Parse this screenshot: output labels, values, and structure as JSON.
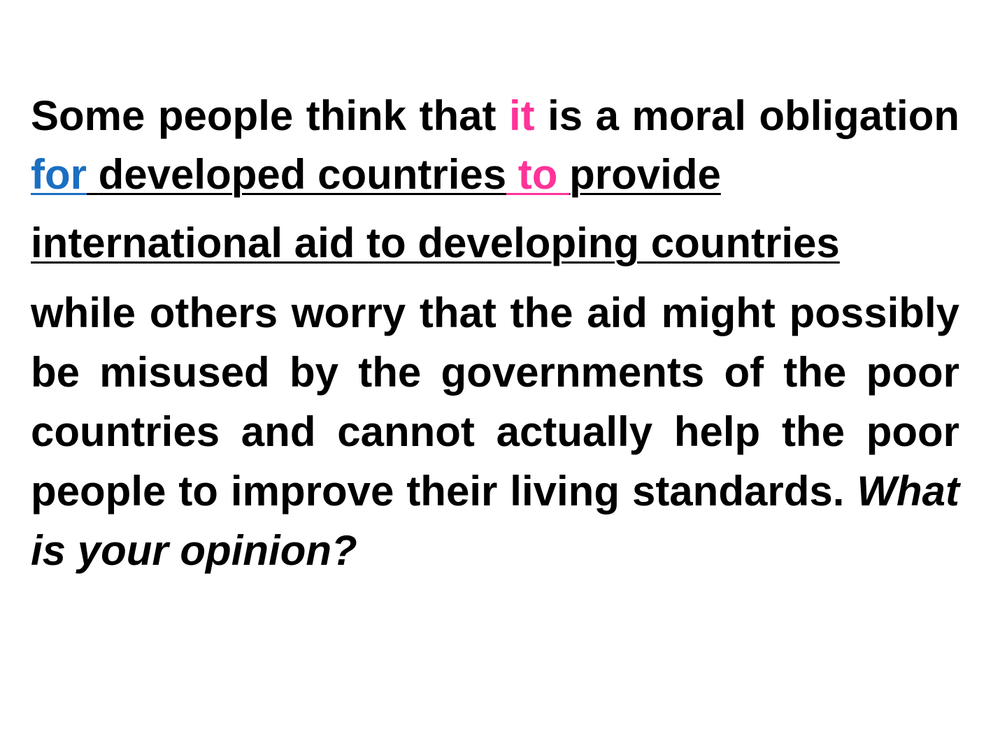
{
  "colors": {
    "highlight_pink": "#ff3399",
    "highlight_blue": "#1a6fc2",
    "text": "#000000",
    "background": "#ffffff"
  },
  "paragraph1": {
    "w1": "Some people think that ",
    "w2_pink": "it",
    "w3": " is a moral obligation ",
    "w4_blue": "for",
    "w5_space": " ",
    "w6": "developed countries",
    "w7_pink": " to ",
    "w8": "provide"
  },
  "paragraph2": {
    "text": "international aid to developing countries"
  },
  "paragraph3": {
    "text": "while others worry that the aid might possibly be misused by the governments of the poor countries and cannot actually help the poor people to improve their living standards. ",
    "question": "What is your opinion?"
  }
}
